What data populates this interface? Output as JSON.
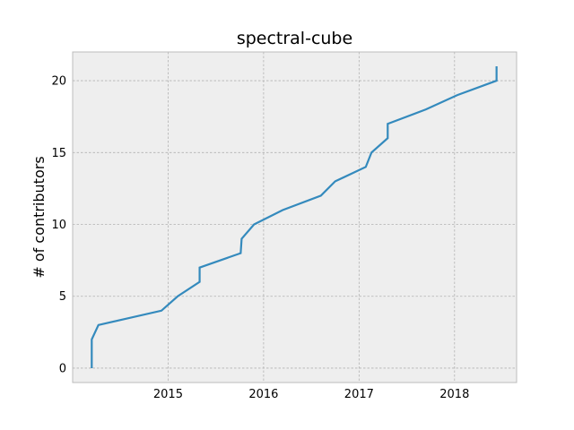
{
  "chart_data": {
    "type": "line",
    "title": "spectral-cube",
    "xlabel": "",
    "ylabel": "# of contributors",
    "xlim": [
      2014.0,
      2018.65
    ],
    "ylim": [
      -1,
      22
    ],
    "xticks": [
      2015,
      2016,
      2017,
      2018
    ],
    "xtick_labels": [
      "2015",
      "2016",
      "2017",
      "2018"
    ],
    "yticks": [
      0,
      5,
      10,
      15,
      20
    ],
    "ytick_labels": [
      "0",
      "5",
      "10",
      "15",
      "20"
    ],
    "grid": true,
    "colors": {
      "line": "#348abd",
      "plot_background": "#eeeeee",
      "grid": "#b2b2b2",
      "spine": "#bcbcbc"
    },
    "series": [
      {
        "x": [
          2014.2,
          2014.2,
          2014.2,
          2014.27,
          2014.93,
          2015.1,
          2015.33,
          2015.33,
          2015.33,
          2015.76,
          2015.77,
          2015.9,
          2016.2,
          2016.6,
          2016.75,
          2017.07,
          2017.13,
          2017.3,
          2017.3,
          2017.7,
          2018.03,
          2018.44,
          2018.44
        ],
        "y": [
          0,
          1,
          2,
          3,
          4,
          5,
          6,
          6.5,
          7,
          8,
          9,
          10,
          11,
          12,
          13,
          14,
          15,
          16,
          17,
          18,
          19,
          20,
          21
        ]
      }
    ]
  }
}
